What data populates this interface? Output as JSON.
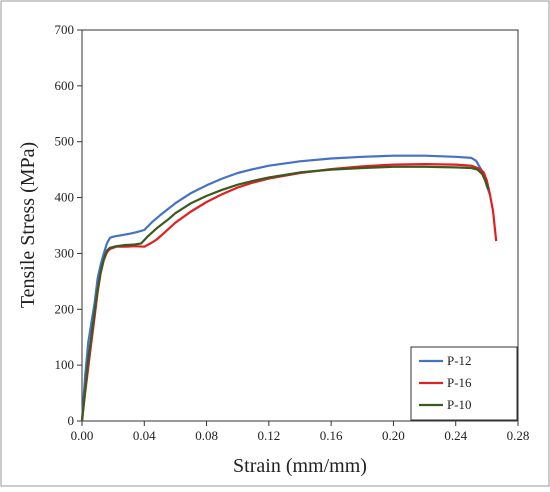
{
  "chart_data": {
    "type": "line",
    "title": "",
    "xlabel": "Strain (mm/mm)",
    "ylabel": "Tensile Stress (MPa)",
    "xlim": [
      0,
      0.28
    ],
    "ylim": [
      0,
      700
    ],
    "x_ticks": [
      "0.00",
      "0.04",
      "0.08",
      "0.12",
      "0.16",
      "0.20",
      "0.24",
      "0.28"
    ],
    "y_ticks": [
      "0",
      "100",
      "200",
      "300",
      "400",
      "500",
      "600",
      "700"
    ],
    "grid": false,
    "legend_position": "bottom-right",
    "series": [
      {
        "name": "P-12",
        "color": "#4472C4",
        "points": [
          [
            0,
            0
          ],
          [
            0.002,
            80
          ],
          [
            0.004,
            140
          ],
          [
            0.006,
            175
          ],
          [
            0.008,
            210
          ],
          [
            0.01,
            255
          ],
          [
            0.012,
            280
          ],
          [
            0.014,
            300
          ],
          [
            0.016,
            318
          ],
          [
            0.018,
            328
          ],
          [
            0.02,
            330
          ],
          [
            0.024,
            332
          ],
          [
            0.03,
            335
          ],
          [
            0.035,
            338
          ],
          [
            0.04,
            342
          ],
          [
            0.045,
            356
          ],
          [
            0.05,
            368
          ],
          [
            0.06,
            390
          ],
          [
            0.07,
            408
          ],
          [
            0.08,
            422
          ],
          [
            0.09,
            434
          ],
          [
            0.1,
            444
          ],
          [
            0.11,
            451
          ],
          [
            0.12,
            457
          ],
          [
            0.14,
            465
          ],
          [
            0.16,
            470
          ],
          [
            0.18,
            473
          ],
          [
            0.2,
            475
          ],
          [
            0.22,
            475
          ],
          [
            0.24,
            473
          ],
          [
            0.25,
            471
          ],
          [
            0.253,
            466
          ],
          [
            0.256,
            452
          ],
          [
            0.258,
            440
          ],
          [
            0.26,
            420
          ],
          [
            0.262,
            405
          ]
        ]
      },
      {
        "name": "P-16",
        "color": "#E02020",
        "points": [
          [
            0,
            0
          ],
          [
            0.002,
            50
          ],
          [
            0.004,
            95
          ],
          [
            0.006,
            140
          ],
          [
            0.008,
            185
          ],
          [
            0.01,
            230
          ],
          [
            0.012,
            265
          ],
          [
            0.014,
            288
          ],
          [
            0.016,
            302
          ],
          [
            0.018,
            308
          ],
          [
            0.022,
            312
          ],
          [
            0.028,
            312
          ],
          [
            0.034,
            313
          ],
          [
            0.04,
            312
          ],
          [
            0.044,
            318
          ],
          [
            0.048,
            325
          ],
          [
            0.052,
            335
          ],
          [
            0.06,
            355
          ],
          [
            0.07,
            375
          ],
          [
            0.08,
            392
          ],
          [
            0.09,
            406
          ],
          [
            0.1,
            418
          ],
          [
            0.11,
            427
          ],
          [
            0.12,
            434
          ],
          [
            0.14,
            444
          ],
          [
            0.16,
            451
          ],
          [
            0.18,
            456
          ],
          [
            0.2,
            459
          ],
          [
            0.22,
            460
          ],
          [
            0.24,
            459
          ],
          [
            0.25,
            457
          ],
          [
            0.255,
            452
          ],
          [
            0.258,
            445
          ],
          [
            0.26,
            430
          ],
          [
            0.262,
            405
          ],
          [
            0.264,
            375
          ],
          [
            0.266,
            322
          ]
        ]
      },
      {
        "name": "P-10",
        "color": "#3A5A1F",
        "points": [
          [
            0,
            0
          ],
          [
            0.002,
            55
          ],
          [
            0.004,
            110
          ],
          [
            0.006,
            150
          ],
          [
            0.008,
            195
          ],
          [
            0.01,
            235
          ],
          [
            0.012,
            268
          ],
          [
            0.014,
            290
          ],
          [
            0.016,
            305
          ],
          [
            0.018,
            310
          ],
          [
            0.022,
            313
          ],
          [
            0.028,
            315
          ],
          [
            0.034,
            316
          ],
          [
            0.038,
            318
          ],
          [
            0.042,
            330
          ],
          [
            0.048,
            345
          ],
          [
            0.055,
            360
          ],
          [
            0.06,
            372
          ],
          [
            0.07,
            390
          ],
          [
            0.08,
            403
          ],
          [
            0.09,
            414
          ],
          [
            0.1,
            423
          ],
          [
            0.11,
            430
          ],
          [
            0.12,
            436
          ],
          [
            0.14,
            445
          ],
          [
            0.16,
            450
          ],
          [
            0.18,
            453
          ],
          [
            0.2,
            455
          ],
          [
            0.22,
            455
          ],
          [
            0.24,
            454
          ],
          [
            0.25,
            453
          ],
          [
            0.254,
            450
          ],
          [
            0.257,
            442
          ],
          [
            0.259,
            430
          ],
          [
            0.261,
            415
          ]
        ]
      }
    ]
  }
}
